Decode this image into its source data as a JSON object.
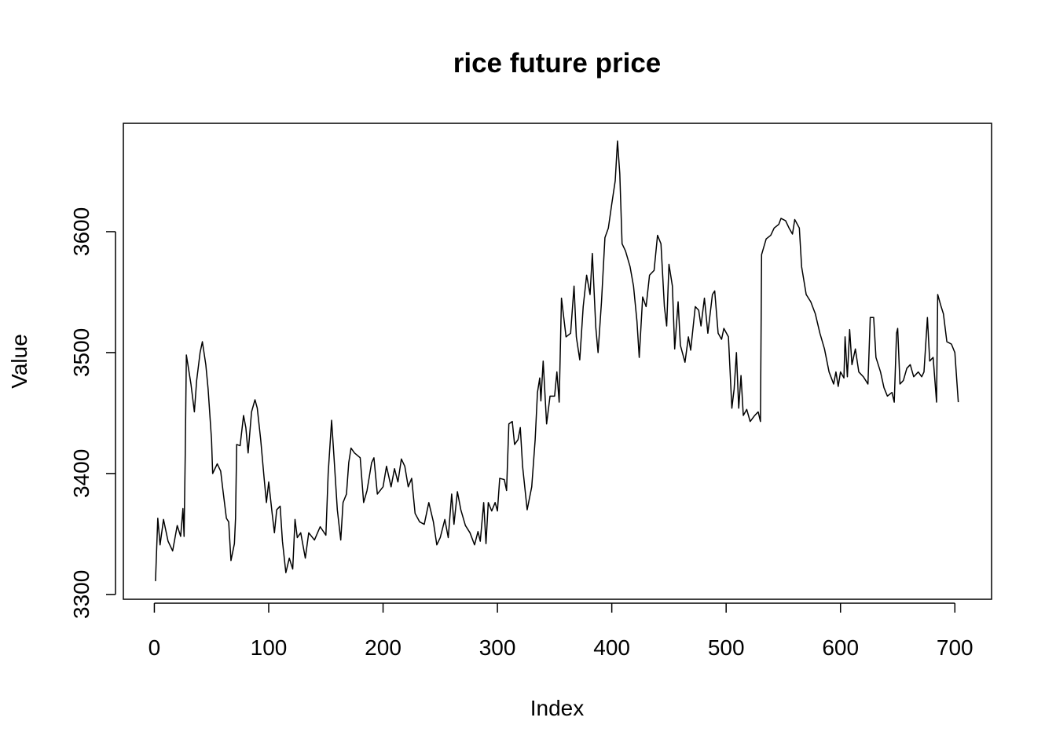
{
  "chart_data": {
    "type": "line",
    "title": "rice future price",
    "x_label": "Index",
    "y_label": "Value",
    "x": [
      1,
      3,
      5,
      8,
      12,
      16,
      20,
      23,
      25,
      26,
      27,
      28,
      32,
      35,
      37,
      40,
      42,
      45,
      47,
      50,
      51,
      55,
      58,
      60,
      63,
      65,
      67,
      70,
      71,
      72,
      75,
      78,
      80,
      82,
      85,
      88,
      90,
      93,
      96,
      98,
      100,
      103,
      105,
      107,
      110,
      112,
      115,
      118,
      121,
      123,
      125,
      128,
      132,
      135,
      140,
      145,
      150,
      152,
      155,
      157,
      160,
      163,
      165,
      168,
      170,
      172,
      175,
      180,
      183,
      186,
      190,
      192,
      195,
      200,
      203,
      207,
      210,
      213,
      216,
      219,
      222,
      225,
      228,
      232,
      236,
      240,
      244,
      247,
      250,
      254,
      257,
      260,
      262,
      265,
      268,
      272,
      276,
      280,
      283,
      285,
      288,
      290,
      292,
      295,
      298,
      300,
      302,
      306,
      308,
      310,
      313,
      315,
      318,
      320,
      322,
      326,
      330,
      333,
      335,
      337,
      338,
      340,
      343,
      346,
      350,
      352,
      354,
      356,
      360,
      364,
      367,
      369,
      372,
      375,
      378,
      381,
      383,
      386,
      388,
      391,
      394,
      397,
      400,
      403,
      405,
      407,
      409,
      412,
      416,
      419,
      422,
      424,
      427,
      430,
      433,
      437,
      440,
      443,
      446,
      448,
      450,
      453,
      455,
      458,
      460,
      464,
      467,
      469,
      473,
      476,
      478,
      481,
      484,
      488,
      490,
      493,
      496,
      498,
      502,
      505,
      507,
      509,
      511,
      513,
      515,
      518,
      521,
      525,
      528,
      530,
      531,
      535,
      539,
      542,
      546,
      548,
      552,
      555,
      558,
      560,
      564,
      566,
      570,
      574,
      578,
      582,
      586,
      590,
      594,
      596,
      598,
      600,
      603,
      604,
      606,
      608,
      610,
      613,
      616,
      620,
      624,
      626,
      629,
      631,
      635,
      638,
      641,
      645,
      647,
      649,
      650,
      652,
      655,
      658,
      661,
      664,
      668,
      671,
      673,
      676,
      678,
      681,
      684,
      685,
      688,
      690,
      693,
      697,
      700,
      703
    ],
    "values": [
      3311,
      3363,
      3341,
      3362,
      3344,
      3336,
      3357,
      3348,
      3371,
      3348,
      3415,
      3498,
      3474,
      3451,
      3477,
      3500,
      3509,
      3490,
      3470,
      3428,
      3400,
      3408,
      3402,
      3386,
      3363,
      3360,
      3328,
      3342,
      3363,
      3424,
      3423,
      3448,
      3438,
      3417,
      3451,
      3461,
      3454,
      3428,
      3396,
      3376,
      3393,
      3367,
      3351,
      3370,
      3373,
      3344,
      3318,
      3330,
      3321,
      3362,
      3347,
      3351,
      3330,
      3351,
      3345,
      3356,
      3349,
      3400,
      3444,
      3415,
      3370,
      3345,
      3376,
      3383,
      3409,
      3421,
      3417,
      3413,
      3376,
      3386,
      3409,
      3413,
      3383,
      3389,
      3406,
      3389,
      3404,
      3393,
      3412,
      3406,
      3389,
      3396,
      3367,
      3360,
      3358,
      3376,
      3360,
      3341,
      3347,
      3362,
      3347,
      3383,
      3358,
      3385,
      3370,
      3357,
      3351,
      3341,
      3352,
      3344,
      3376,
      3342,
      3376,
      3369,
      3376,
      3369,
      3396,
      3395,
      3386,
      3441,
      3443,
      3424,
      3428,
      3438,
      3406,
      3370,
      3389,
      3428,
      3467,
      3479,
      3460,
      3493,
      3441,
      3464,
      3464,
      3484,
      3459,
      3545,
      3513,
      3516,
      3555,
      3513,
      3494,
      3538,
      3564,
      3548,
      3582,
      3521,
      3500,
      3542,
      3595,
      3603,
      3623,
      3642,
      3675,
      3648,
      3590,
      3584,
      3571,
      3555,
      3526,
      3496,
      3546,
      3538,
      3564,
      3568,
      3597,
      3590,
      3538,
      3522,
      3573,
      3555,
      3503,
      3542,
      3506,
      3492,
      3513,
      3502,
      3538,
      3535,
      3522,
      3545,
      3516,
      3548,
      3551,
      3516,
      3511,
      3520,
      3513,
      3454,
      3470,
      3500,
      3454,
      3481,
      3448,
      3453,
      3443,
      3448,
      3451,
      3443,
      3581,
      3594,
      3597,
      3603,
      3606,
      3611,
      3609,
      3603,
      3598,
      3610,
      3603,
      3571,
      3548,
      3542,
      3532,
      3516,
      3503,
      3484,
      3474,
      3484,
      3472,
      3484,
      3479,
      3513,
      3480,
      3519,
      3490,
      3503,
      3484,
      3480,
      3474,
      3529,
      3529,
      3496,
      3484,
      3471,
      3464,
      3467,
      3459,
      3516,
      3520,
      3474,
      3477,
      3487,
      3490,
      3480,
      3484,
      3480,
      3484,
      3529,
      3493,
      3496,
      3459,
      3548,
      3538,
      3532,
      3509,
      3507,
      3500,
      3459
    ],
    "color": "#000000",
    "xlim": [
      -27.1,
      732.1
    ],
    "ylim": [
      3296,
      3689.6
    ],
    "xticks": [
      0,
      100,
      200,
      300,
      400,
      500,
      600,
      700
    ],
    "yticks": [
      3300,
      3400,
      3500,
      3600
    ]
  }
}
